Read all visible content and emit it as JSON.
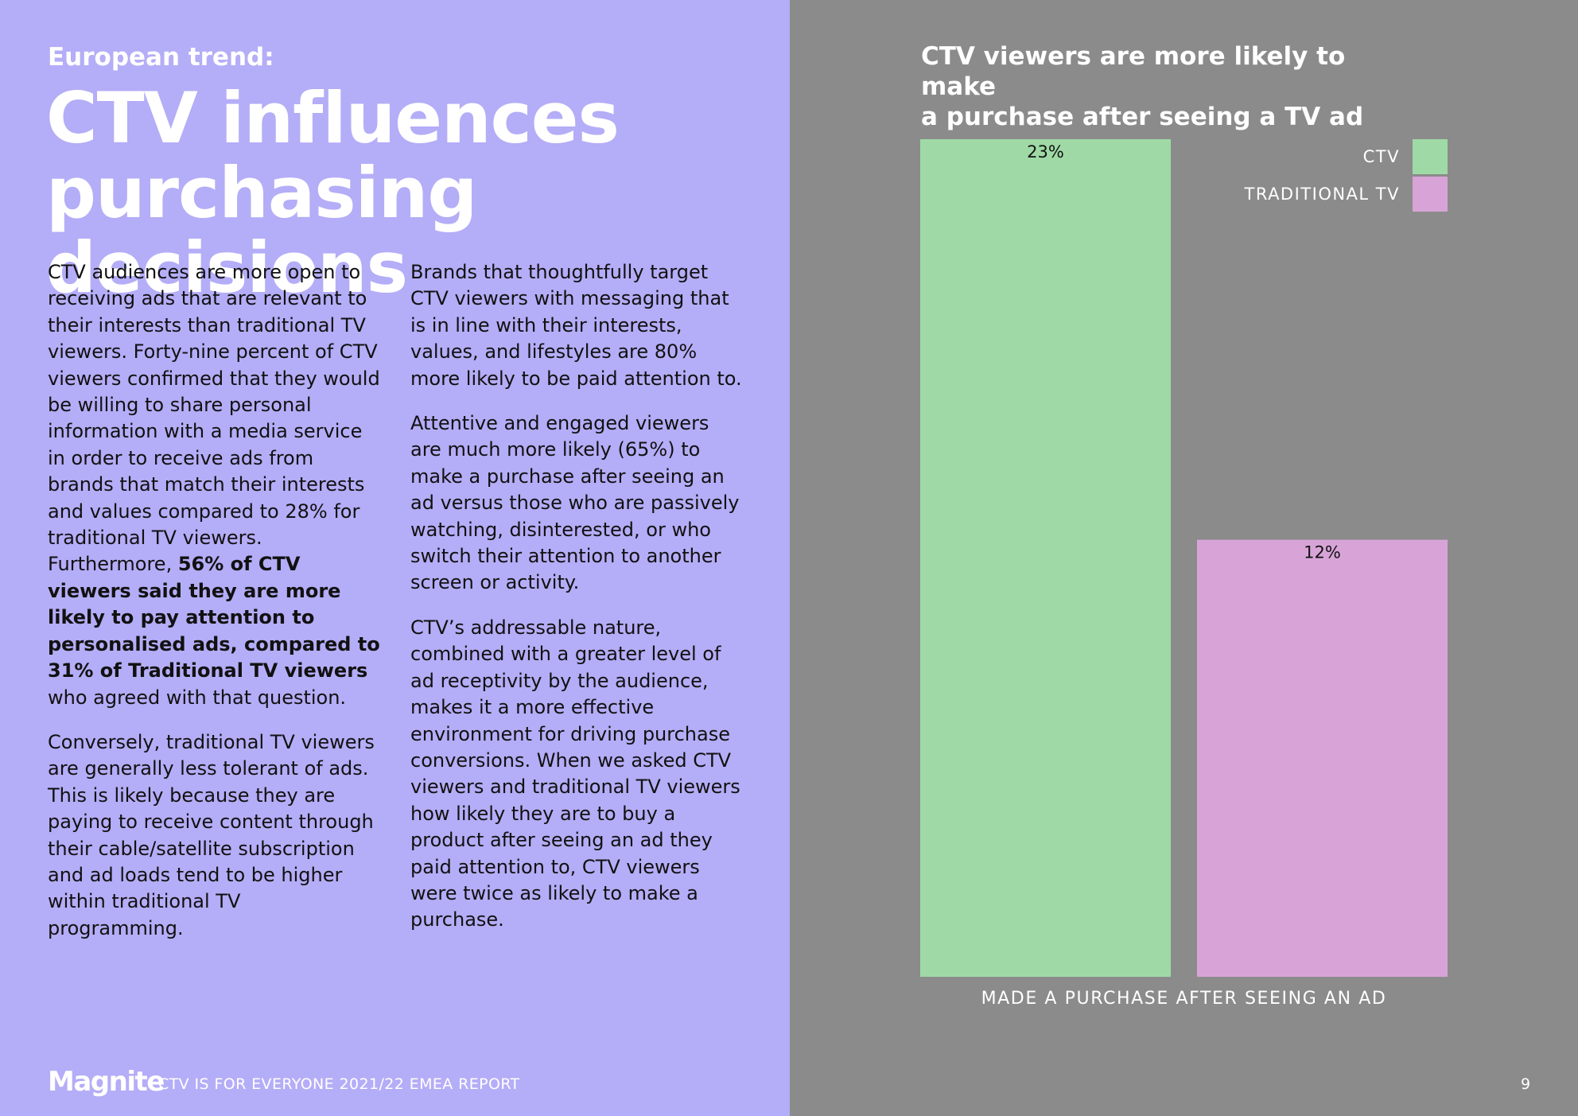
{
  "header": {
    "eyebrow": "European trend:",
    "headline_line1": "CTV influences",
    "headline_line2": "purchasing decisions"
  },
  "body": {
    "col1_p1_text": "CTV audiences are more open to receiving ads that are relevant to their interests than traditional TV viewers. Forty-nine percent of CTV viewers confirmed that they would be willing to share personal information with a media service in order to receive ads from brands that match their interests and values compared to 28% for traditional TV viewers. Furthermore, ",
    "col1_p1_bold": "56% of CTV viewers said they are more likely to pay attention to personalised ads, compared to 31% of Traditional TV viewers",
    "col1_p1_tail": " who agreed with that question.",
    "col1_p2": "Conversely, traditional TV viewers are generally less tolerant of ads. This is likely because they are paying to receive content through their cable/satellite subscription and ad loads tend to be higher within traditional TV programming.",
    "col2_p1": "Brands that thoughtfully target CTV viewers with messaging that is in line with their interests, values, and lifestyles are 80% more likely to be paid attention to.",
    "col2_p2": "Attentive and engaged viewers are much more likely (65%) to make a purchase after seeing an ad versus those who are passively watching, disinterested, or who switch their attention to another screen or activity.",
    "col2_p3": "CTV’s addressable nature, combined with a greater level of ad receptivity by the audience, makes it a more effective environment for driving purchase conversions. When we asked CTV viewers and traditional TV viewers how likely they are to buy a product after seeing an ad they paid attention to, CTV viewers were twice as likely to make a purchase."
  },
  "footer": {
    "logo": "Magnite",
    "report": "CTV IS FOR EVERYONE 2021/22 EMEA REPORT",
    "page_number": "9"
  },
  "colors": {
    "left_bg": "#b4adf7",
    "right_bg": "#8b8b8b",
    "ctv": "#9fdaa6",
    "traditional_tv": "#d8a4d8"
  },
  "chart_data": {
    "type": "bar",
    "title_line1": "CTV viewers are more likely to make",
    "title_line2": "a purchase after seeing a TV ad",
    "categories": [
      "MADE A PURCHASE AFTER SEEING AN AD"
    ],
    "series": [
      {
        "name": "CTV",
        "values": [
          23
        ],
        "label": "23%",
        "color": "#9fdaa6"
      },
      {
        "name": "TRADITIONAL TV",
        "values": [
          12
        ],
        "label": "12%",
        "color": "#d8a4d8"
      }
    ],
    "unit": "%",
    "ylim": [
      0,
      23
    ],
    "grid": false,
    "legend": "top-right"
  }
}
